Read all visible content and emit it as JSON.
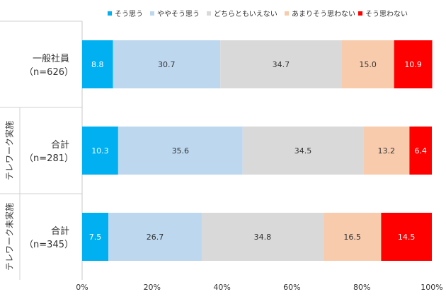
{
  "chart_data": {
    "type": "bar",
    "orientation": "horizontal",
    "stacked": true,
    "legend_position": "top",
    "xlim": [
      0,
      100
    ],
    "x_ticks": [
      "0%",
      "20%",
      "40%",
      "60%",
      "80%",
      "100%"
    ],
    "groups": [
      {
        "label": "",
        "rows": [
          {
            "label": "一般社員",
            "sublabel": "（n=626）"
          }
        ]
      },
      {
        "label": "テレワーク実施",
        "rows": [
          {
            "label": "合計",
            "sublabel": "（n=281）"
          }
        ]
      },
      {
        "label": "テレワーク未実施",
        "rows": [
          {
            "label": "合計",
            "sublabel": "（n=345）"
          }
        ]
      }
    ],
    "series": [
      {
        "name": "そう思う",
        "color": "#00b0f0",
        "label_color": "#ffffff",
        "values": [
          8.8,
          10.3,
          7.5
        ],
        "labels": [
          "8.8",
          "10.3",
          "7.5"
        ]
      },
      {
        "name": "ややそう思う",
        "color": "#bdd7ee",
        "label_color": "#333333",
        "values": [
          30.7,
          35.6,
          26.7
        ],
        "labels": [
          "30.7",
          "35.6",
          "26.7"
        ]
      },
      {
        "name": "どちらともいえない",
        "color": "#d9d9d9",
        "label_color": "#333333",
        "values": [
          34.7,
          34.5,
          34.8
        ],
        "labels": [
          "34.7",
          "34.5",
          "34.8"
        ]
      },
      {
        "name": "あまりそう思わない",
        "color": "#f8cbad",
        "label_color": "#333333",
        "values": [
          15.0,
          13.2,
          16.5
        ],
        "labels": [
          "15.0",
          "13.2",
          "16.5"
        ]
      },
      {
        "name": "そう思わない",
        "color": "#ff0000",
        "label_color": "#ffffff",
        "values": [
          10.9,
          6.4,
          14.5
        ],
        "labels": [
          "10.9",
          "6.4",
          "14.5"
        ]
      }
    ]
  }
}
